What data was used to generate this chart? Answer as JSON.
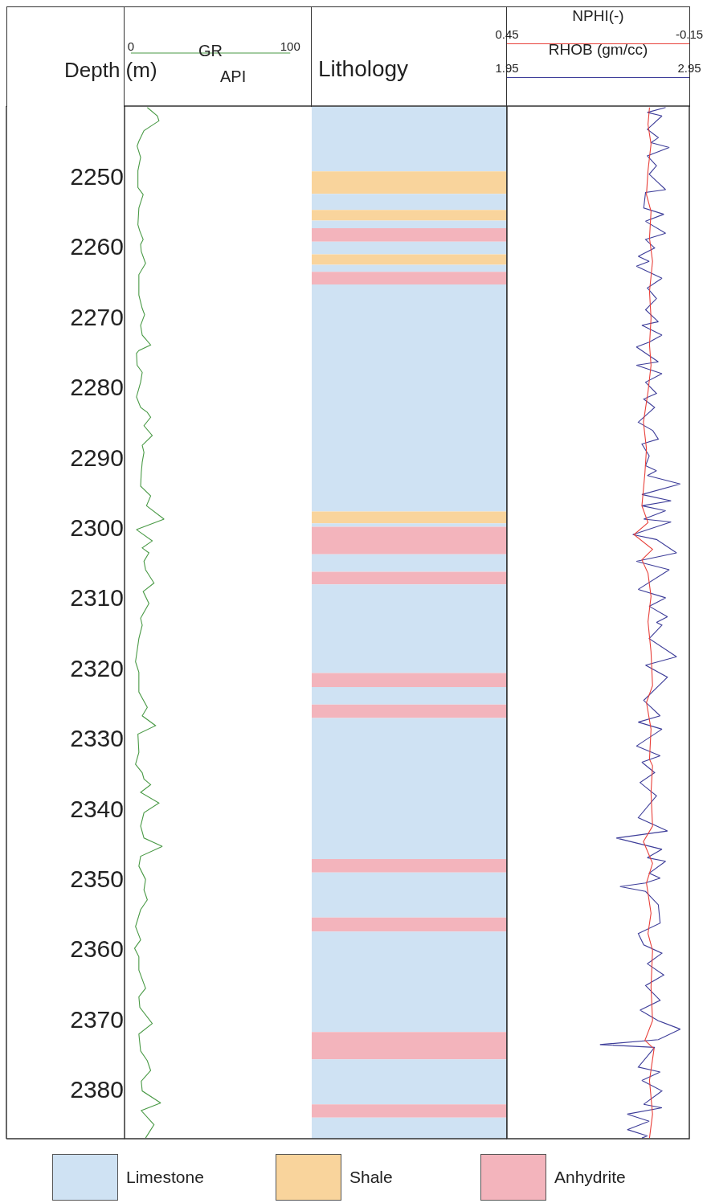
{
  "chart_data": [
    {
      "type": "line",
      "xlabel": "GR",
      "ylabel": "Depth (m)",
      "xlim": [
        -4,
        236
      ],
      "xticks": [
        0,
        100
      ],
      "ylim": [
        2387,
        2240
      ],
      "yticks": [
        2250,
        2260,
        2270,
        2280,
        2290,
        2300,
        2310,
        2320,
        2330,
        2340,
        2350,
        2360,
        2370,
        2380
      ],
      "marker": "none",
      "line_style": "solid",
      "series": [
        {
          "color": "#4a9a46",
          "x": [
            10.3,
            16.6,
            17.6,
            8.2,
            5.0,
            3.9,
            6.1,
            4.4,
            4.4,
            7.7,
            5.0,
            4.4,
            5.6,
            7.7,
            6.1,
            6.5,
            9.2,
            5.0,
            5.0,
            7.1,
            8.6,
            6.1,
            7.1,
            12.4,
            5.0,
            3.5,
            3.9,
            7.1,
            6.1,
            3.5,
            6.1,
            10.3,
            12.4,
            8.2,
            13.4,
            7.1,
            8.2,
            7.1,
            6.5,
            6.1,
            12.4,
            9.8,
            20.8,
            3.5,
            13.4,
            7.1,
            11.3,
            8.2,
            9.2,
            14.5,
            7.7,
            11.3,
            6.1,
            7.1,
            5.0,
            2.9,
            5.0,
            5.0,
            10.3,
            7.1,
            15.5,
            4.4,
            5.0,
            2.9,
            7.1,
            8.2,
            12.4,
            6.1,
            17.6,
            8.2,
            6.1,
            8.2,
            19.7,
            6.1,
            5.0,
            9.2,
            8.2,
            10.3,
            6.1,
            2.9,
            6.1,
            2.3,
            5.0,
            5.0,
            9.2,
            5.0,
            5.6,
            13.4,
            5.0,
            6.1,
            10.3,
            12.4,
            6.5,
            7.1,
            18.7,
            6.5,
            14.5,
            9.2
          ],
          "values": [
            2240.2,
            2241.4,
            2242.1,
            2243.5,
            2245.0,
            2245.7,
            2247.3,
            2249.2,
            2251.6,
            2252.6,
            2254.5,
            2256.9,
            2257.8,
            2259.0,
            2259.7,
            2260.7,
            2262.4,
            2264.0,
            2266.9,
            2268.8,
            2269.7,
            2271.2,
            2272.6,
            2274.0,
            2274.8,
            2275.2,
            2276.9,
            2277.9,
            2279.3,
            2281.4,
            2282.9,
            2283.6,
            2284.3,
            2285.5,
            2286.9,
            2288.3,
            2289.3,
            2290.7,
            2292.2,
            2294.1,
            2295.5,
            2296.9,
            2298.8,
            2300.3,
            2301.9,
            2302.9,
            2303.6,
            2304.8,
            2306.0,
            2307.9,
            2309.1,
            2310.8,
            2312.9,
            2313.9,
            2315.8,
            2319.1,
            2320.6,
            2323.4,
            2325.6,
            2326.8,
            2328.2,
            2329.4,
            2332.0,
            2333.7,
            2334.9,
            2335.8,
            2336.6,
            2337.7,
            2339.2,
            2340.6,
            2342.5,
            2344.2,
            2345.4,
            2346.8,
            2348.2,
            2350.1,
            2351.6,
            2353.0,
            2354.4,
            2356.8,
            2358.7,
            2359.9,
            2361.1,
            2363.0,
            2365.6,
            2366.8,
            2368.3,
            2370.6,
            2372.1,
            2374.5,
            2375.9,
            2377.3,
            2378.8,
            2380.2,
            2381.9,
            2383.0,
            2385.0,
            2386.9
          ]
        }
      ],
      "title": "Lithology",
      "annotations": [
        "API",
        "Limestone",
        "Shale",
        "Anhydrite"
      ],
      "bands": [
        {
          "axis": "y",
          "from": 2240,
          "to": 2249.3,
          "color": "#cfe2f3"
        },
        {
          "axis": "y",
          "from": 2249.3,
          "to": 2252.5,
          "color": "#f9d49c"
        },
        {
          "axis": "y",
          "from": 2252.5,
          "to": 2254.8,
          "color": "#cfe2f3"
        },
        {
          "axis": "y",
          "from": 2254.8,
          "to": 2256.3,
          "color": "#f9d49c"
        },
        {
          "axis": "y",
          "from": 2256.3,
          "to": 2257.4,
          "color": "#cfe2f3"
        },
        {
          "axis": "y",
          "from": 2257.4,
          "to": 2259.3,
          "color": "#f3b4bc"
        },
        {
          "axis": "y",
          "from": 2259.3,
          "to": 2261.1,
          "color": "#cfe2f3"
        },
        {
          "axis": "y",
          "from": 2261.1,
          "to": 2262.6,
          "color": "#f9d49c"
        },
        {
          "axis": "y",
          "from": 2262.6,
          "to": 2263.6,
          "color": "#cfe2f3"
        },
        {
          "axis": "y",
          "from": 2263.6,
          "to": 2265.4,
          "color": "#f3b4bc"
        },
        {
          "axis": "y",
          "from": 2265.4,
          "to": 2297.7,
          "color": "#cfe2f3"
        },
        {
          "axis": "y",
          "from": 2297.7,
          "to": 2299.4,
          "color": "#f9d49c"
        },
        {
          "axis": "y",
          "from": 2299.4,
          "to": 2299.9,
          "color": "#cfe2f3"
        },
        {
          "axis": "y",
          "from": 2299.9,
          "to": 2303.8,
          "color": "#f3b4bc"
        },
        {
          "axis": "y",
          "from": 2303.8,
          "to": 2306.3,
          "color": "#cfe2f3"
        },
        {
          "axis": "y",
          "from": 2306.3,
          "to": 2308.1,
          "color": "#f3b4bc"
        },
        {
          "axis": "y",
          "from": 2308.1,
          "to": 2320.7,
          "color": "#cfe2f3"
        },
        {
          "axis": "y",
          "from": 2320.7,
          "to": 2322.7,
          "color": "#f3b4bc"
        },
        {
          "axis": "y",
          "from": 2322.7,
          "to": 2325.2,
          "color": "#cfe2f3"
        },
        {
          "axis": "y",
          "from": 2325.2,
          "to": 2327.1,
          "color": "#f3b4bc"
        },
        {
          "axis": "y",
          "from": 2327.1,
          "to": 2347.2,
          "color": "#cfe2f3"
        },
        {
          "axis": "y",
          "from": 2347.2,
          "to": 2349.1,
          "color": "#f3b4bc"
        },
        {
          "axis": "y",
          "from": 2349.1,
          "to": 2355.5,
          "color": "#cfe2f3"
        },
        {
          "axis": "y",
          "from": 2355.5,
          "to": 2357.5,
          "color": "#f3b4bc"
        },
        {
          "axis": "y",
          "from": 2357.5,
          "to": 2371.8,
          "color": "#cfe2f3"
        },
        {
          "axis": "y",
          "from": 2371.8,
          "to": 2375.7,
          "color": "#f3b4bc"
        },
        {
          "axis": "y",
          "from": 2375.7,
          "to": 2382.1,
          "color": "#cfe2f3"
        },
        {
          "axis": "y",
          "from": 2382.1,
          "to": 2384.0,
          "color": "#f3b4bc"
        },
        {
          "axis": "y",
          "from": 2384.0,
          "to": 2387,
          "color": "#cfe2f3"
        }
      ]
    },
    {
      "type": "line",
      "xlabel": "RHOB (gm/cc)",
      "x2label": "NPHI(-)",
      "xlim": [
        1.95,
        2.95
      ],
      "xticks": [
        1.95,
        2.95
      ],
      "x2lim": [
        0.45,
        -0.15
      ],
      "x2ticks": [
        0.45,
        -0.15
      ],
      "ylim": [
        2387,
        2240
      ],
      "tick_labels": "x",
      "marker": "none",
      "line_style": "solid",
      "series": [
        {
          "color": "#3d3d99",
          "x": [
            2.82,
            2.72,
            2.8,
            2.72,
            2.78,
            2.74,
            2.84,
            2.72,
            2.77,
            2.73,
            2.82,
            2.71,
            2.7,
            2.81,
            2.71,
            2.82,
            2.71,
            2.76,
            2.67,
            2.73,
            2.66,
            2.8,
            2.72,
            2.77,
            2.71,
            2.78,
            2.69,
            2.8,
            2.73,
            2.66,
            2.78,
            2.66,
            2.8,
            2.71,
            2.77,
            2.7,
            2.76,
            2.67,
            2.75,
            2.78,
            2.69,
            2.73,
            2.71,
            2.77,
            2.72,
            2.9,
            2.69,
            2.85,
            2.69,
            2.82,
            2.7,
            2.85,
            2.64,
            2.77,
            2.88,
            2.66,
            2.84,
            2.67,
            2.82,
            2.73,
            2.83,
            2.77,
            2.8,
            2.73,
            2.88,
            2.71,
            2.83,
            2.7,
            2.79,
            2.67,
            2.8,
            2.66,
            2.79,
            2.69,
            2.76,
            2.68,
            2.77,
            2.67,
            2.83,
            2.55,
            2.8,
            2.72,
            2.82,
            2.73,
            2.79,
            2.71,
            2.57,
            2.71,
            2.78,
            2.79,
            2.67,
            2.7,
            2.8,
            2.72,
            2.81,
            2.71,
            2.79,
            2.68,
            2.78,
            2.9,
            2.78,
            2.46,
            2.76,
            2.67,
            2.79,
            2.69,
            2.8,
            2.7,
            2.8,
            2.61,
            2.73,
            2.61,
            2.72,
            2.69
          ],
          "values": [
            2240.2,
            2240.9,
            2241.4,
            2243.3,
            2244.5,
            2245.2,
            2245.9,
            2247.1,
            2248.5,
            2249.7,
            2251.9,
            2252.3,
            2254.5,
            2255.4,
            2256.4,
            2258.1,
            2259.0,
            2260.2,
            2261.4,
            2262.1,
            2262.8,
            2264.5,
            2265.9,
            2267.4,
            2269.0,
            2270.7,
            2271.2,
            2272.6,
            2273.6,
            2274.3,
            2276.4,
            2276.9,
            2278.1,
            2279.3,
            2280.9,
            2281.7,
            2282.9,
            2285.0,
            2286.2,
            2287.4,
            2288.1,
            2289.8,
            2291.2,
            2291.9,
            2292.6,
            2293.8,
            2295.3,
            2296.2,
            2296.9,
            2297.6,
            2298.8,
            2299.2,
            2301.0,
            2301.7,
            2303.6,
            2304.8,
            2306.0,
            2308.8,
            2310.0,
            2311.2,
            2312.7,
            2313.5,
            2313.9,
            2315.8,
            2318.4,
            2319.6,
            2321.3,
            2324.6,
            2326.8,
            2327.7,
            2328.7,
            2331.1,
            2332.5,
            2333.4,
            2334.9,
            2336.3,
            2338.2,
            2341.3,
            2343.2,
            2344.2,
            2345.8,
            2347.0,
            2347.5,
            2349.2,
            2349.9,
            2350.6,
            2351.1,
            2351.8,
            2353.7,
            2356.3,
            2357.8,
            2359.4,
            2360.6,
            2362.1,
            2363.7,
            2365.2,
            2367.3,
            2368.7,
            2370.2,
            2371.4,
            2372.9,
            2373.6,
            2374.0,
            2376.8,
            2377.5,
            2378.7,
            2380.2,
            2382.1,
            2382.6,
            2383.5,
            2384.5,
            2385.7,
            2386.6,
            2386.9
          ]
        },
        {
          "color": "#e8403a",
          "axis": "x2",
          "x": [
            -0.019,
            -0.014,
            -0.024,
            -0.014,
            -0.009,
            -0.024,
            -0.019,
            -0.029,
            -0.019,
            -0.024,
            -0.019,
            -0.024,
            -0.014,
            0.001,
            -0.009,
            -0.004,
            0.006,
            -0.014,
            0.032,
            -0.029,
            0.006,
            -0.014,
            -0.024,
            -0.014,
            -0.024,
            -0.029,
            -0.009,
            -0.024,
            -0.019,
            -0.029,
            -0.024,
            -0.029,
            0.001,
            -0.029,
            -0.009,
            -0.024,
            -0.014,
            -0.029,
            -0.024,
            -0.029,
            -0.004,
            -0.034,
            -0.019,
            -0.029,
            -0.019
          ],
          "values": [
            2240.2,
            2242.6,
            2245.4,
            2249.2,
            2252.6,
            2255.0,
            2258.8,
            2262.1,
            2266.4,
            2270.2,
            2274.0,
            2276.9,
            2280.7,
            2285.0,
            2288.8,
            2292.2,
            2296.9,
            2299.3,
            2301.0,
            2303.1,
            2304.6,
            2306.5,
            2309.8,
            2313.4,
            2317.7,
            2322.5,
            2324.9,
            2328.7,
            2333.0,
            2333.9,
            2337.7,
            2342.5,
            2344.7,
            2347.8,
            2350.6,
            2354.9,
            2357.8,
            2360.2,
            2365.4,
            2370.2,
            2373.0,
            2374.2,
            2378.7,
            2383.5,
            2386.9
          ]
        }
      ]
    }
  ]
}
